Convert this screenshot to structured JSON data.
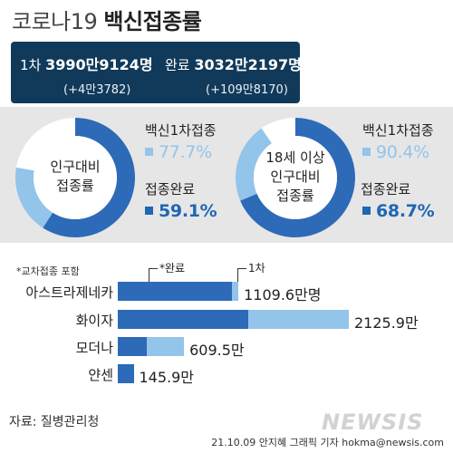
{
  "title": {
    "light": "코로나19",
    "bold": "백신접종률"
  },
  "summary": {
    "first_label": "1차",
    "first_value": "3990만9124명",
    "first_delta": "(+4만3782)",
    "complete_label": "완료",
    "complete_value": "3032만2197명",
    "complete_delta": "(+109만8170)"
  },
  "donuts": [
    {
      "label_lines": [
        "인구대비",
        "접종률"
      ],
      "first_label": "백신1차접종",
      "first_value": "77.7%",
      "complete_label": "접종완료",
      "complete_value": "59.1%"
    },
    {
      "label_lines": [
        "18세 이상",
        "인구대비",
        "접종률"
      ],
      "first_label": "백신1차접종",
      "first_value": "90.4%",
      "complete_label": "접종완료",
      "complete_value": "68.7%"
    }
  ],
  "bars": {
    "note": "*교차접종 포함",
    "legend_complete": "*완료",
    "legend_first": "1차"
  },
  "source": "자료: 질병관리청",
  "watermark": "NEWSIS",
  "credit": "21.10.09 안지혜 그래픽 기자  hokma@newsis.com",
  "colors": {
    "dark_blue": "#2d6ab8",
    "light_blue": "#93c4ea",
    "navy": "#113a5a"
  },
  "chart_data": [
    {
      "type": "pie",
      "categories": [
        "접종완료",
        "백신1차접종"
      ],
      "values": [
        59.1,
        77.7
      ],
      "unit": "%"
    },
    {
      "type": "pie",
      "categories": [
        "접종완료",
        "백신1차접종"
      ],
      "values": [
        68.7,
        90.4
      ],
      "unit": "%"
    },
    {
      "type": "bar",
      "orientation": "horizontal",
      "categories": [
        "아스트라제네카",
        "화이자",
        "모더나",
        "얀센"
      ],
      "value_labels": [
        "1109.6만명",
        "2125.9만",
        "609.5만",
        "145.9만"
      ],
      "series": [
        {
          "name": "*완료",
          "values": [
            1050,
            1200,
            270,
            145.9
          ]
        },
        {
          "name": "1차",
          "values": [
            1109.6,
            2125.9,
            609.5,
            145.9
          ]
        }
      ],
      "unit": "만"
    }
  ]
}
